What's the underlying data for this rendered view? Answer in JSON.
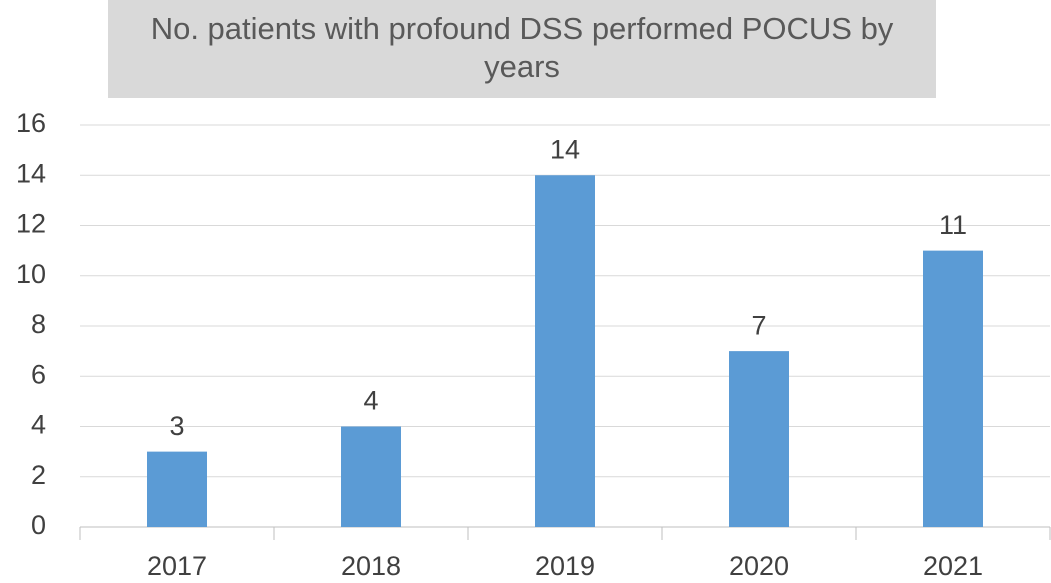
{
  "chart_data": {
    "type": "bar",
    "title": "No. patients with profound DSS performed POCUS by years",
    "categories": [
      "2017",
      "2018",
      "2019",
      "2020",
      "2021"
    ],
    "values": [
      3,
      4,
      14,
      7,
      11
    ],
    "color": "#5b9bd5",
    "ylim": [
      0,
      16
    ],
    "yticks": [
      0,
      2,
      4,
      6,
      8,
      10,
      12,
      14,
      16
    ],
    "grid": true
  }
}
